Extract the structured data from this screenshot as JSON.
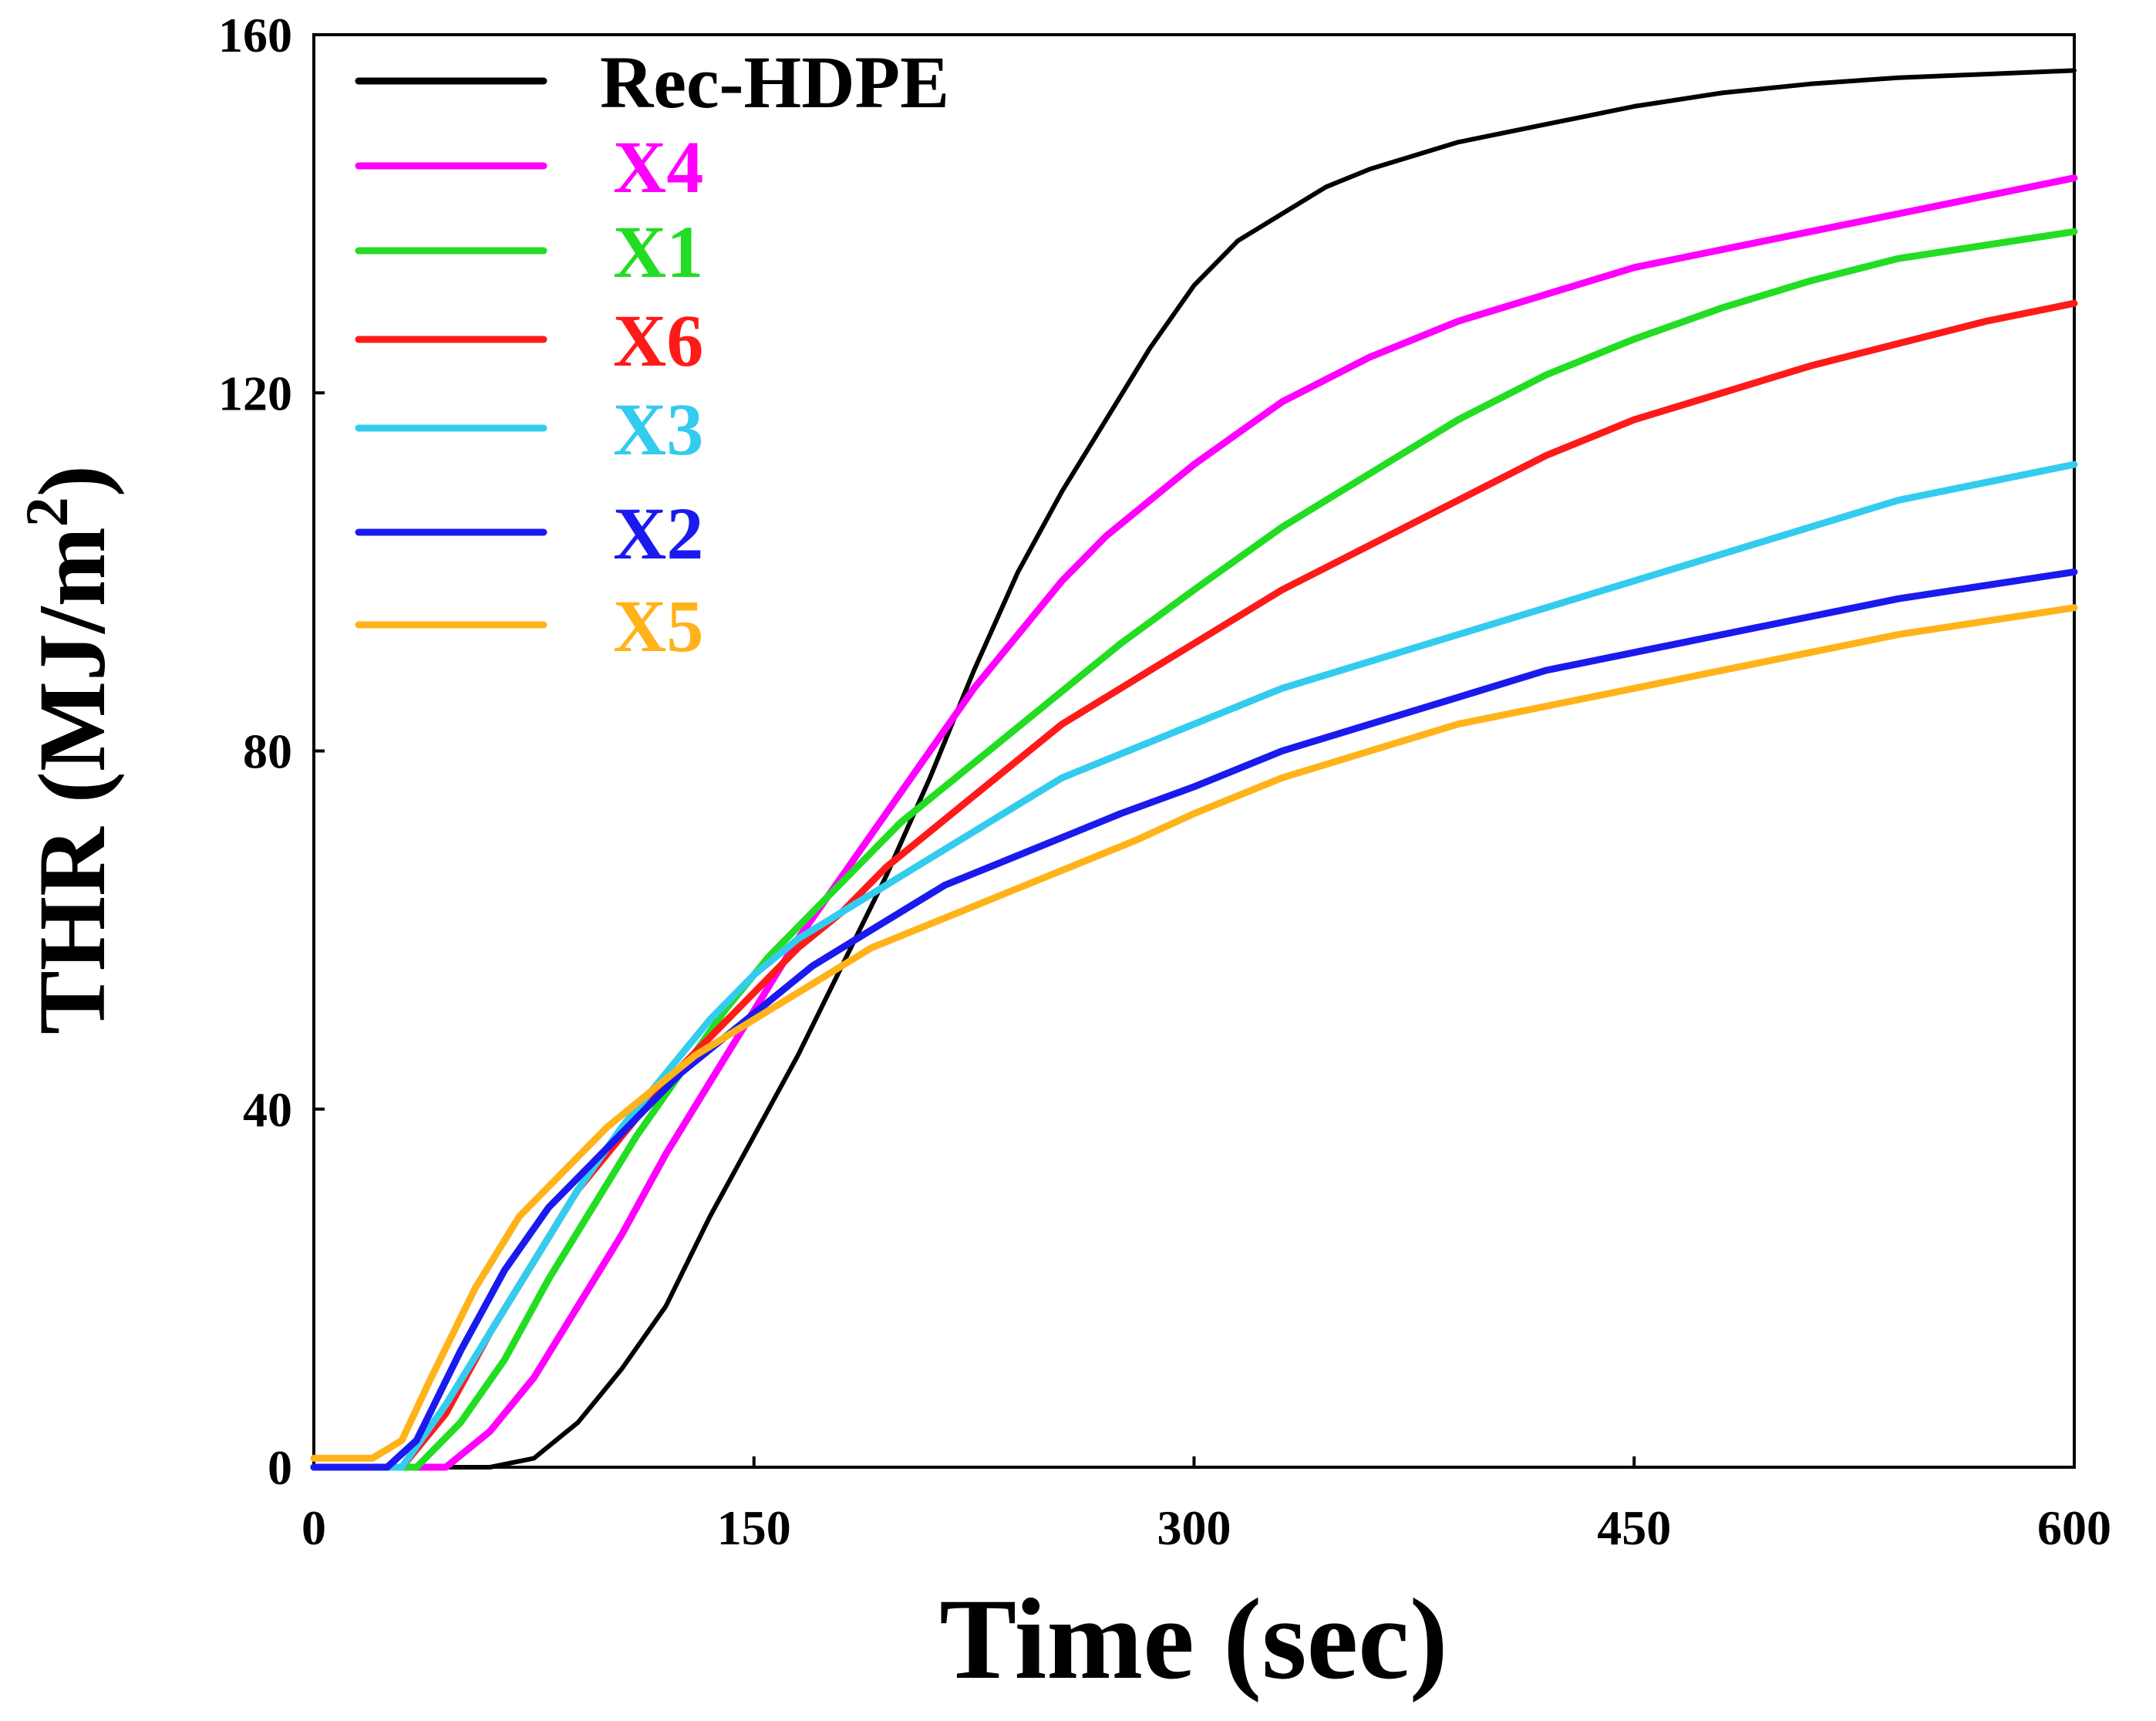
{
  "chart_data": {
    "type": "line",
    "title": "",
    "xlabel": "Time (sec)",
    "ylabel": "THR (MJ/m",
    "ylabel_superscript": "2",
    "ylabel_suffix": ")",
    "xlim": [
      0,
      600
    ],
    "ylim": [
      0,
      160
    ],
    "xticks": [
      0,
      150,
      300,
      450,
      600
    ],
    "yticks": [
      0,
      40,
      80,
      120,
      160
    ],
    "grid": false,
    "legend_position": "top-left",
    "series": [
      {
        "name": "Rec-HDPE",
        "color": "#000000",
        "x": [
          0,
          60,
          75,
          90,
          105,
          120,
          135,
          150,
          165,
          180,
          195,
          210,
          225,
          240,
          255,
          270,
          285,
          300,
          315,
          330,
          345,
          360,
          390,
          420,
          450,
          480,
          510,
          540,
          570,
          600
        ],
        "y": [
          0,
          0,
          1,
          5,
          11,
          18,
          28,
          37,
          46,
          56,
          66,
          77,
          89,
          100,
          109,
          117,
          125,
          132,
          137,
          140,
          143,
          145,
          148,
          150,
          152,
          153.5,
          154.5,
          155.2,
          155.6,
          156
        ]
      },
      {
        "name": "X4",
        "color": "#ff00ff",
        "x": [
          0,
          45,
          60,
          75,
          90,
          105,
          120,
          135,
          150,
          165,
          180,
          195,
          210,
          225,
          240,
          255,
          270,
          285,
          300,
          330,
          360,
          390,
          420,
          450,
          480,
          510,
          540,
          570,
          600
        ],
        "y": [
          0,
          0,
          4,
          10,
          18,
          26,
          35,
          43,
          51,
          59,
          66,
          73,
          80,
          87,
          93,
          99,
          104,
          108,
          112,
          119,
          124,
          128,
          131,
          134,
          136,
          138,
          140,
          142,
          144
        ]
      },
      {
        "name": "X1",
        "color": "#22dd22",
        "x": [
          0,
          35,
          50,
          65,
          80,
          95,
          110,
          125,
          140,
          155,
          170,
          185,
          200,
          215,
          230,
          245,
          260,
          275,
          300,
          330,
          360,
          390,
          420,
          450,
          480,
          510,
          540,
          570,
          600
        ],
        "y": [
          0,
          0,
          5,
          12,
          21,
          29,
          37,
          44,
          51,
          57,
          62,
          67,
          72,
          76,
          80,
          84,
          88,
          92,
          98,
          105,
          111,
          117,
          122,
          126,
          129.5,
          132.5,
          135,
          136.5,
          138
        ]
      },
      {
        "name": "X6",
        "color": "#ff1a1a",
        "x": [
          0,
          30,
          45,
          60,
          75,
          90,
          105,
          120,
          135,
          150,
          165,
          180,
          195,
          210,
          225,
          240,
          255,
          270,
          285,
          300,
          330,
          360,
          390,
          420,
          450,
          480,
          510,
          540,
          570,
          600
        ],
        "y": [
          0,
          0,
          6,
          15,
          23,
          31,
          37,
          43,
          48,
          53,
          58,
          62,
          67,
          71,
          75,
          79,
          83,
          86,
          89,
          92,
          98,
          103,
          108,
          113,
          117,
          120,
          123,
          125.5,
          128,
          130
        ]
      },
      {
        "name": "X3",
        "color": "#33ccee",
        "x": [
          0,
          30,
          45,
          60,
          75,
          90,
          105,
          120,
          135,
          150,
          165,
          180,
          195,
          210,
          225,
          240,
          255,
          270,
          285,
          300,
          330,
          360,
          390,
          420,
          450,
          480,
          510,
          540,
          570,
          600
        ],
        "y": [
          0,
          0,
          7,
          15,
          23,
          31,
          38,
          44,
          50,
          55,
          59,
          62,
          65,
          68,
          71,
          74,
          77,
          79,
          81,
          83,
          87,
          90,
          93,
          96,
          99,
          102,
          105,
          108,
          110,
          112
        ]
      },
      {
        "name": "X2",
        "color": "#1a1aee",
        "x": [
          0,
          25,
          35,
          50,
          65,
          80,
          95,
          110,
          125,
          140,
          155,
          170,
          185,
          200,
          215,
          230,
          245,
          260,
          275,
          300,
          330,
          360,
          390,
          420,
          450,
          480,
          510,
          540,
          570,
          600
        ],
        "y": [
          0,
          0,
          3,
          13,
          22,
          29,
          34,
          39,
          44,
          48,
          52,
          56,
          59,
          62,
          65,
          67,
          69,
          71,
          73,
          76,
          80,
          83,
          86,
          89,
          91,
          93,
          95,
          97,
          98.5,
          100
        ]
      },
      {
        "name": "X5",
        "color": "#ffb31a",
        "x": [
          0,
          20,
          30,
          40,
          55,
          70,
          85,
          100,
          115,
          130,
          145,
          160,
          175,
          190,
          205,
          220,
          235,
          250,
          265,
          280,
          300,
          330,
          360,
          390,
          420,
          450,
          480,
          510,
          540,
          570,
          600
        ],
        "y": [
          1,
          1,
          3,
          10,
          20,
          28,
          33,
          38,
          42,
          46,
          49,
          52,
          55,
          58,
          60,
          62,
          64,
          66,
          68,
          70,
          73,
          77,
          80,
          83,
          85,
          87,
          89,
          91,
          93,
          94.5,
          96
        ]
      }
    ]
  }
}
